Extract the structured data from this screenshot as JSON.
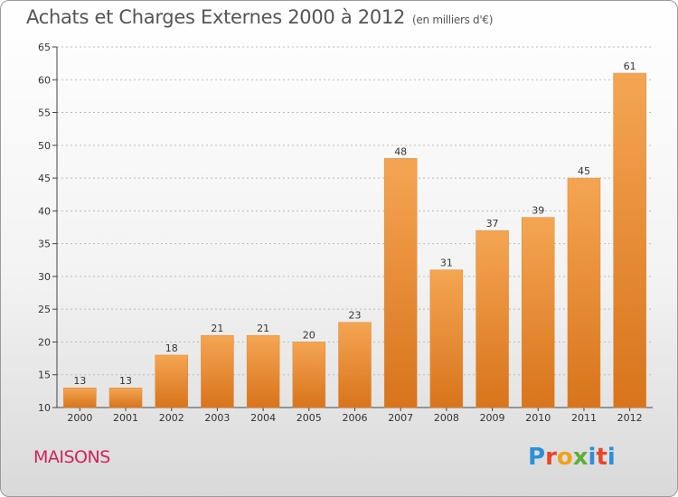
{
  "title": "Achats et Charges Externes 2000 à 2012",
  "unit_note": "(en milliers d'€)",
  "legend_label": "MAISONS",
  "logo": {
    "text": "Proxiti",
    "letters": [
      "P",
      "r",
      "o",
      "x",
      "i",
      "t",
      "i"
    ],
    "colors": [
      "#2d8fd6",
      "#e7452c",
      "#f0a21c",
      "#5fae3a",
      "#2d8fd6",
      "#e7452c",
      "#2d8fd6"
    ]
  },
  "colors": {
    "bar_light": "#f5a552",
    "bar_dark": "#d8741c",
    "axis": "#444444",
    "grid": "#bbbbbb",
    "legend": "#d0245f"
  },
  "chart_data": {
    "type": "bar",
    "categories": [
      "2000",
      "2001",
      "2002",
      "2003",
      "2004",
      "2005",
      "2006",
      "2007",
      "2008",
      "2009",
      "2010",
      "2011",
      "2012"
    ],
    "values": [
      13,
      13,
      18,
      21,
      21,
      20,
      23,
      48,
      31,
      37,
      39,
      45,
      61
    ],
    "data_labels": [
      "13",
      "13",
      "18",
      "21",
      "21",
      "20",
      "23",
      "48",
      "31",
      "37",
      "39",
      "45",
      "61"
    ],
    "ylim": [
      10,
      65
    ],
    "yticks": [
      "10",
      "15",
      "20",
      "25",
      "30",
      "35",
      "40",
      "45",
      "50",
      "55",
      "60",
      "65"
    ],
    "xlabel": "",
    "ylabel": "",
    "grid": true
  }
}
